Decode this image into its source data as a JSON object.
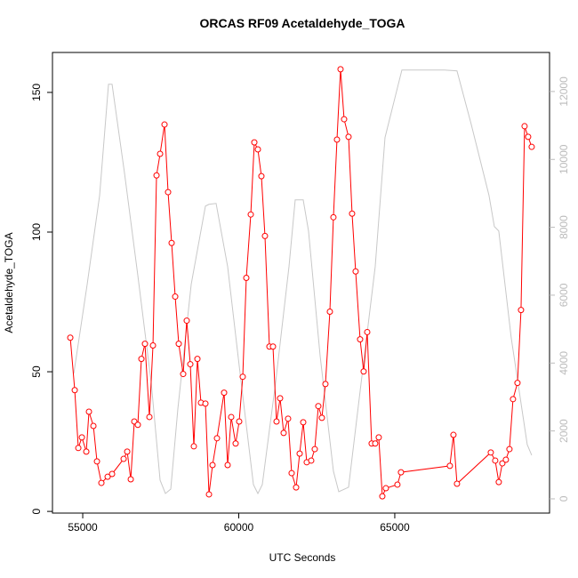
{
  "chart_data": {
    "type": "line",
    "title": "ORCAS RF09 Acetaldehyde_TOGA",
    "xlabel": "UTC Seconds",
    "ylabel": "Acetaldehyde_TOGA",
    "xlim": [
      54030,
      69960
    ],
    "ylim": [
      -0.6,
      164.3
    ],
    "y2lim": [
      -420,
      13150
    ],
    "xticks": [
      55000,
      60000,
      65000
    ],
    "yticks": [
      0,
      50,
      100,
      150
    ],
    "y2ticks": [
      0,
      2000,
      4000,
      6000,
      8000,
      10000,
      12000
    ],
    "series": [
      {
        "color": "#ff0000",
        "marker": "circle",
        "x": [
          54601,
          54744,
          54858,
          54972,
          55114,
          55199,
          55342,
          55456,
          55598,
          55798,
          55940,
          56311,
          56425,
          56539,
          56652,
          56766,
          56880,
          56994,
          57137,
          57251,
          57365,
          57479,
          57621,
          57735,
          57849,
          57963,
          58077,
          58219,
          58333,
          58447,
          58561,
          58675,
          58789,
          58932,
          59046,
          59160,
          59302,
          59530,
          59644,
          59758,
          59900,
          60014,
          60128,
          60242,
          60385,
          60499,
          60613,
          60726,
          60840,
          60983,
          61097,
          61211,
          61325,
          61439,
          61581,
          61695,
          61838,
          61952,
          62066,
          62179,
          62322,
          62436,
          62550,
          62664,
          62778,
          62920,
          63034,
          63148,
          63262,
          63376,
          63519,
          63632,
          63746,
          63889,
          64003,
          64117,
          64259,
          64373,
          64487,
          64601,
          64715,
          65085,
          65199,
          66766,
          66880,
          66994,
          68077,
          68219,
          68333,
          68447,
          68561,
          68675,
          68789,
          68932,
          69046,
          69160,
          69274,
          69388
        ],
        "values": [
          62.2,
          43.4,
          22.7,
          26.5,
          21.4,
          35.7,
          30.6,
          17.9,
          10.2,
          12.4,
          13.4,
          18.8,
          21.4,
          11.5,
          32.2,
          31.0,
          54.6,
          60.0,
          33.8,
          59.4,
          120.3,
          128.0,
          138.5,
          114.3,
          96.1,
          76.9,
          60.0,
          49.2,
          68.3,
          52.7,
          23.3,
          54.6,
          38.9,
          38.6,
          6.1,
          16.6,
          26.2,
          42.5,
          16.6,
          33.8,
          24.3,
          32.2,
          48.2,
          83.6,
          106.3,
          132.1,
          129.6,
          120.0,
          98.6,
          59.0,
          59.0,
          32.2,
          40.5,
          28.1,
          33.2,
          13.7,
          8.6,
          20.7,
          31.9,
          17.6,
          18.2,
          22.3,
          37.7,
          33.5,
          45.6,
          71.5,
          105.3,
          133.1,
          158.3,
          140.4,
          134.1,
          106.6,
          85.9,
          61.6,
          50.1,
          64.2,
          24.3,
          24.3,
          26.5,
          5.4,
          8.3,
          9.6,
          14.0,
          16.3,
          27.4,
          9.9,
          21.1,
          18.2,
          10.5,
          17.2,
          18.5,
          22.3,
          40.2,
          46.0,
          72.1,
          137.9,
          134.1,
          130.5
        ]
      },
      {
        "color": "#c8c8c8",
        "axis": "y2",
        "x": [
          54715,
          55142,
          55541,
          55826,
          55940,
          56339,
          56766,
          57194,
          57479,
          57650,
          57821,
          58048,
          58476,
          58932,
          59046,
          59274,
          59644,
          60043,
          60470,
          60613,
          60755,
          61182,
          61610,
          61809,
          62066,
          62236,
          62607,
          63034,
          63205,
          63519,
          63889,
          64373,
          64687,
          65114,
          65228,
          65883,
          66595,
          66994,
          67450,
          68020,
          68191,
          68333,
          68732,
          69245,
          69388
        ],
        "values": [
          3696,
          6317,
          8938,
          12215,
          12215,
          9594,
          6579,
          3434,
          550,
          157,
          288,
          2647,
          6317,
          8624,
          8676,
          8702,
          6841,
          3696,
          419,
          157,
          419,
          3434,
          6841,
          8807,
          8807,
          7890,
          4220,
          813,
          210,
          341,
          3172,
          6841,
          10642,
          12215,
          12634,
          12634,
          12634,
          12608,
          11035,
          8938,
          8021,
          7890,
          4744,
          1599,
          1284
        ]
      }
    ]
  }
}
